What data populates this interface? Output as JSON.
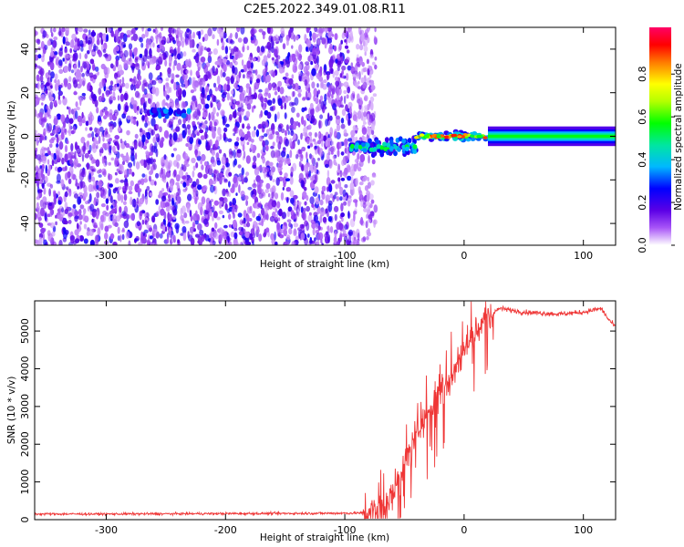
{
  "title": "C2E5.2022.349.01.08.R11",
  "chart_data": [
    {
      "type": "heatmap",
      "xlabel": "Height of straight line (km)",
      "ylabel": "Frequency (Hz)",
      "xlim": [
        -360,
        127
      ],
      "ylim": [
        -50,
        50
      ],
      "xticks": [
        -300,
        -200,
        -100,
        0,
        100
      ],
      "yticks": [
        -40,
        -20,
        0,
        20,
        40
      ],
      "colorbar": {
        "label": "Normalized spectral amplitude",
        "range": [
          0,
          1
        ],
        "ticks": [
          "0.0",
          "0.2",
          "0.4",
          "0.6",
          "0.8"
        ]
      },
      "features": [
        {
          "x_range": [
            -360,
            -82
          ],
          "description": "broadband noise across all frequencies"
        },
        {
          "x_range": [
            -265,
            -230
          ],
          "frequency": 11,
          "amplitude": 0.35
        },
        {
          "x_range": [
            -95,
            -40
          ],
          "frequency": -5,
          "amplitude": 0.5
        },
        {
          "x_range": [
            -40,
            20
          ],
          "frequency": 0,
          "amplitude": 0.95
        },
        {
          "x_range": [
            20,
            127
          ],
          "frequency": 0,
          "amplitude": 0.55
        }
      ]
    },
    {
      "type": "line",
      "xlabel": "Height of straight line (km)",
      "ylabel": "SNR (10 * v/v)",
      "xlim": [
        -360,
        127
      ],
      "ylim": [
        0,
        5800
      ],
      "xticks": [
        -300,
        -200,
        -100,
        0,
        100
      ],
      "yticks": [
        0,
        1000,
        2000,
        3000,
        4000,
        5000
      ],
      "series": [
        {
          "color": "#ef3636",
          "x": [
            -360,
            -300,
            -200,
            -100,
            -80,
            -70,
            -60,
            -50,
            -40,
            -30,
            -20,
            -10,
            0,
            10,
            20,
            30,
            50,
            80,
            100,
            115,
            120,
            127
          ],
          "values": [
            150,
            150,
            160,
            170,
            180,
            300,
            700,
            1500,
            2300,
            2900,
            3400,
            3900,
            4500,
            5000,
            5400,
            5600,
            5500,
            5450,
            5500,
            5600,
            5350,
            5100
          ]
        }
      ]
    }
  ]
}
